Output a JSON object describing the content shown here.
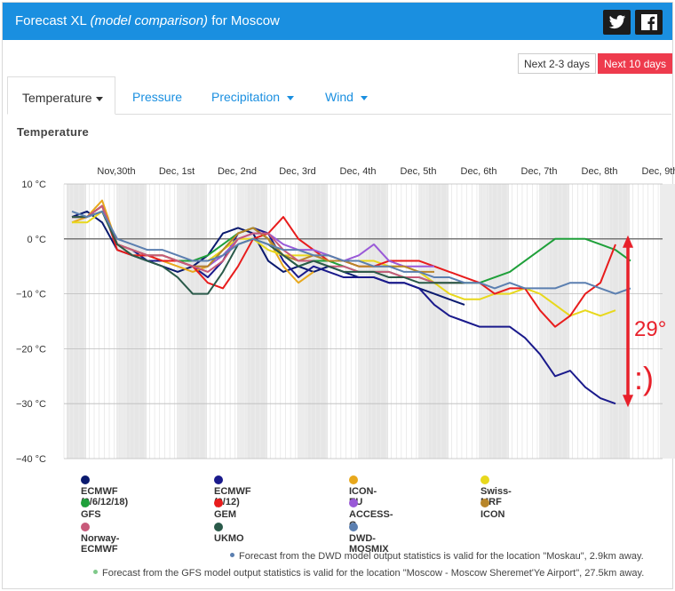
{
  "header": {
    "title_main": "Forecast XL",
    "title_em": "(model comparison)",
    "title_tail": "for Moscow"
  },
  "buttons": {
    "next_short": "Next 2-3 days",
    "next_long": "Next 10 days"
  },
  "tabs": [
    {
      "label": "Temperature"
    },
    {
      "label": "Pressure"
    },
    {
      "label": "Precipitation"
    },
    {
      "label": "Wind"
    }
  ],
  "section_title": "Temperature",
  "annotation": {
    "delta": "29°",
    "face": ":)",
    "color": "#e8202a"
  },
  "notes": [
    {
      "text": "Forecast from the DWD model output statistics is valid for the location \"Moskau\", 2.9km away.",
      "color": "#5b7fb0"
    },
    {
      "text": "Forecast from the GFS model output statistics is valid for the location \"Moscow - Moscow Sheremet'Ye Airport\", 27.5km away.",
      "color": "#7fc98a"
    }
  ],
  "chart_data": {
    "type": "line",
    "x_tick_labels": [
      "Nov,30th",
      "Dec, 1st",
      "Dec, 2nd",
      "Dec, 3rd",
      "Dec, 4th",
      "Dec, 5th",
      "Dec, 6th",
      "Dec, 7th",
      "Dec, 8th",
      "Dec, 9th"
    ],
    "y_ticks": [
      10,
      0,
      -10,
      -20,
      -30,
      -40
    ],
    "y_tick_labels": [
      "10 °C",
      "0 °C",
      "−10 °C",
      "−20 °C",
      "−30 °C",
      "−40 °C"
    ],
    "ylim": [
      -40,
      10
    ],
    "xlim_days": [
      0,
      10
    ],
    "grid": true,
    "series": [
      {
        "name": "ECMWF (0/6/12/18)",
        "color": "#0a1a6e",
        "x": [
          0,
          0.25,
          0.5,
          0.75,
          1,
          1.25,
          1.5,
          1.75,
          2,
          2.25,
          2.5,
          2.75,
          3,
          3.25,
          3.5,
          3.75,
          4,
          4.25,
          4.5,
          4.75,
          5,
          5.25,
          5.5,
          5.75,
          6,
          6.25,
          6.5
        ],
        "y": [
          4,
          5,
          3,
          -2,
          -3,
          -4,
          -5,
          -6,
          -5,
          -3,
          1,
          2,
          1,
          -4,
          -6,
          -5,
          -6,
          -5,
          -6,
          -7,
          -7,
          -8,
          -8,
          -9,
          -10,
          -11,
          -12
        ]
      },
      {
        "name": "ECMWF (0/12)",
        "color": "#1a1a8c",
        "x": [
          0,
          0.25,
          0.5,
          0.75,
          1,
          1.25,
          1.5,
          1.75,
          2,
          2.25,
          2.5,
          2.75,
          3,
          3.25,
          3.5,
          3.75,
          4,
          4.25,
          4.5,
          4.75,
          5,
          5.25,
          5.5,
          5.75,
          6,
          6.25,
          6.5,
          6.75,
          7,
          7.25,
          7.5,
          7.75,
          8,
          8.25,
          8.5,
          8.75,
          9
        ],
        "y": [
          4,
          4,
          6,
          -1,
          -2,
          -4,
          -4,
          -4,
          -5,
          -7,
          -4,
          1,
          2,
          1,
          -4,
          -7,
          -5,
          -6,
          -7,
          -7,
          -7,
          -8,
          -8,
          -9,
          -12,
          -14,
          -15,
          -16,
          -16,
          -16,
          -18,
          -21,
          -25,
          -24,
          -27,
          -29,
          -30
        ]
      },
      {
        "name": "ICON-EU",
        "color": "#e8a81c",
        "x": [
          0,
          0.25,
          0.5,
          0.75,
          1,
          1.25,
          1.5,
          1.75,
          2,
          2.25,
          2.5,
          2.75,
          3,
          3.25,
          3.5,
          3.75,
          4
        ],
        "y": [
          3,
          4,
          7,
          -1,
          -3,
          -3,
          -4,
          -5,
          -6,
          -5,
          -2,
          1,
          2,
          0,
          -5,
          -8,
          -6
        ]
      },
      {
        "name": "Swiss-MRF",
        "color": "#e8d81c",
        "x": [
          0,
          0.25,
          0.5,
          0.75,
          1,
          1.25,
          1.5,
          1.75,
          2,
          2.25,
          2.5,
          2.75,
          3,
          3.25,
          3.5,
          3.75,
          4,
          4.25,
          4.5,
          4.75,
          5,
          5.25,
          5.5,
          5.75,
          6,
          6.25,
          6.5,
          6.75,
          7,
          7.25,
          7.5,
          7.75,
          8,
          8.25,
          8.5,
          8.75,
          9
        ],
        "y": [
          3,
          3,
          5,
          -1,
          -2,
          -3,
          -3,
          -4,
          -4,
          -4,
          -2,
          0,
          0,
          -2,
          -3,
          -3,
          -3,
          -3,
          -4,
          -4,
          -4,
          -5,
          -5,
          -6,
          -8,
          -10,
          -11,
          -11,
          -10,
          -10,
          -9,
          -10,
          -12,
          -14,
          -13,
          -14,
          -13
        ]
      },
      {
        "name": "GFS",
        "color": "#1fa03a",
        "x": [
          0,
          0.25,
          0.5,
          0.75,
          1,
          1.25,
          1.5,
          1.75,
          2,
          2.25,
          2.5,
          2.75,
          3,
          3.25,
          3.5,
          3.75,
          4,
          4.25,
          4.5,
          4.75,
          5,
          5.25,
          5.5,
          5.75,
          6,
          6.25,
          6.5,
          6.75,
          7,
          7.25,
          7.5,
          7.75,
          8,
          8.25,
          8.5,
          8.75,
          9,
          9.25
        ],
        "y": [
          4,
          4,
          6,
          -1,
          -2,
          -3,
          -3,
          -4,
          -4,
          -3,
          -1,
          1,
          2,
          0,
          -3,
          -5,
          -4,
          -4,
          -5,
          -6,
          -6,
          -6,
          -7,
          -7,
          -8,
          -8,
          -8,
          -8,
          -7,
          -6,
          -4,
          -2,
          0,
          0,
          0,
          -1,
          -2,
          -4
        ]
      },
      {
        "name": "GEM",
        "color": "#e81c1c",
        "x": [
          0,
          0.25,
          0.5,
          0.75,
          1,
          1.25,
          1.5,
          1.75,
          2,
          2.25,
          2.5,
          2.75,
          3,
          3.25,
          3.5,
          3.75,
          4,
          4.25,
          4.5,
          4.75,
          5,
          5.25,
          5.5,
          5.75,
          6,
          6.25,
          6.5,
          6.75,
          7,
          7.25,
          7.5,
          7.75,
          8,
          8.25,
          8.5,
          8.75,
          9
        ],
        "y": [
          4,
          4,
          6,
          -2,
          -3,
          -3,
          -4,
          -4,
          -5,
          -8,
          -9,
          -5,
          0,
          1,
          4,
          0,
          -2,
          -4,
          -4,
          -5,
          -5,
          -4,
          -4,
          -4,
          -5,
          -6,
          -7,
          -8,
          -10,
          -9,
          -9,
          -13,
          -16,
          -14,
          -10,
          -8,
          -1
        ]
      },
      {
        "name": "ACCESS-G",
        "color": "#9a5ad8",
        "x": [
          0,
          0.25,
          0.5,
          0.75,
          1,
          1.25,
          1.5,
          1.75,
          2,
          2.25,
          2.5,
          2.75,
          3,
          3.25,
          3.5,
          3.75,
          4,
          4.25,
          4.5,
          4.75,
          5,
          5.25,
          5.5,
          5.75,
          6
        ],
        "y": [
          4,
          4,
          6,
          -1,
          -2,
          -3,
          -3,
          -4,
          -5,
          -5,
          -3,
          0,
          1,
          1,
          -1,
          -2,
          -2,
          -3,
          -4,
          -3,
          -1,
          -4,
          -5,
          -5,
          -5
        ]
      },
      {
        "name": "ICON",
        "color": "#b8862a",
        "x": [
          0,
          0.25,
          0.5,
          0.75,
          1,
          1.25,
          1.5,
          1.75,
          2,
          2.25,
          2.5,
          2.75,
          3,
          3.25,
          3.5,
          3.75,
          4,
          4.25,
          4.5,
          4.75,
          5,
          5.25,
          5.5,
          5.75,
          6
        ],
        "y": [
          4,
          4,
          6,
          -1,
          -2,
          -3,
          -3,
          -4,
          -5,
          -5,
          -2,
          1,
          2,
          0,
          -3,
          -4,
          -3,
          -4,
          -4,
          -5,
          -5,
          -5,
          -5,
          -6,
          -6
        ]
      },
      {
        "name": "Norway-ECMWF",
        "color": "#c85a7a",
        "x": [
          0,
          0.25,
          0.5,
          0.75,
          1,
          1.25,
          1.5,
          1.75,
          2,
          2.25,
          2.5,
          2.75,
          3,
          3.25,
          3.5,
          3.75,
          4,
          4.25,
          4.5,
          4.75,
          5,
          5.25,
          5.5,
          5.75,
          6,
          6.25,
          6.5
        ],
        "y": [
          4,
          4,
          6,
          -1,
          -2,
          -3,
          -3,
          -4,
          -5,
          -6,
          -4,
          0,
          1,
          1,
          -2,
          -4,
          -4,
          -5,
          -5,
          -6,
          -6,
          -6,
          -7,
          -7,
          -8,
          -8,
          -8
        ]
      },
      {
        "name": "UKMO",
        "color": "#2a5a4a",
        "x": [
          0,
          0.25,
          0.5,
          0.75,
          1,
          1.25,
          1.5,
          1.75,
          2,
          2.25,
          2.5,
          2.75,
          3,
          3.25,
          3.5,
          3.75,
          4,
          4.25,
          4.5,
          4.75,
          5,
          5.25,
          5.5,
          5.75,
          6,
          6.25,
          6.5
        ],
        "y": [
          4,
          4,
          5,
          -1,
          -3,
          -4,
          -5,
          -7,
          -10,
          -10,
          -6,
          -1,
          0,
          -1,
          -3,
          -5,
          -4,
          -5,
          -6,
          -6,
          -6,
          -7,
          -7,
          -8,
          -8,
          -8,
          -8
        ]
      },
      {
        "name": "DWD-MOSMIX",
        "color": "#5b7fb0",
        "x": [
          0,
          0.25,
          0.5,
          0.75,
          1,
          1.25,
          1.5,
          1.75,
          2,
          2.25,
          2.5,
          2.75,
          3,
          3.25,
          3.5,
          3.75,
          4,
          4.25,
          4.5,
          4.75,
          5,
          5.25,
          5.5,
          5.75,
          6,
          6.25,
          6.5,
          6.75,
          7,
          7.25,
          7.5,
          7.75,
          8,
          8.25,
          8.5,
          8.75,
          9,
          9.25
        ],
        "y": [
          5,
          4,
          5,
          0,
          -1,
          -2,
          -2,
          -3,
          -4,
          -4,
          -3,
          -1,
          0,
          -1,
          -2,
          -2,
          -3,
          -3,
          -4,
          -4,
          -5,
          -5,
          -6,
          -6,
          -7,
          -7,
          -8,
          -8,
          -9,
          -8,
          -9,
          -9,
          -9,
          -8,
          -8,
          -9,
          -10,
          -9
        ]
      }
    ],
    "legend": [
      {
        "name": "ECMWF (0/6/12/18)",
        "color": "#0a1a6e"
      },
      {
        "name": "ECMWF (0/12)",
        "color": "#1a1a8c"
      },
      {
        "name": "ICON-EU",
        "color": "#e8a81c"
      },
      {
        "name": "Swiss-MRF",
        "color": "#e8d81c"
      },
      {
        "name": "GFS",
        "color": "#1fa03a"
      },
      {
        "name": "GEM",
        "color": "#e81c1c"
      },
      {
        "name": "ACCESS-G",
        "color": "#9a5ad8"
      },
      {
        "name": "ICON",
        "color": "#b8862a"
      },
      {
        "name": "Norway-ECMWF",
        "color": "#c85a7a"
      },
      {
        "name": "UKMO",
        "color": "#2a5a4a"
      },
      {
        "name": "DWD-MOSMIX",
        "color": "#5b7fb0"
      }
    ]
  }
}
